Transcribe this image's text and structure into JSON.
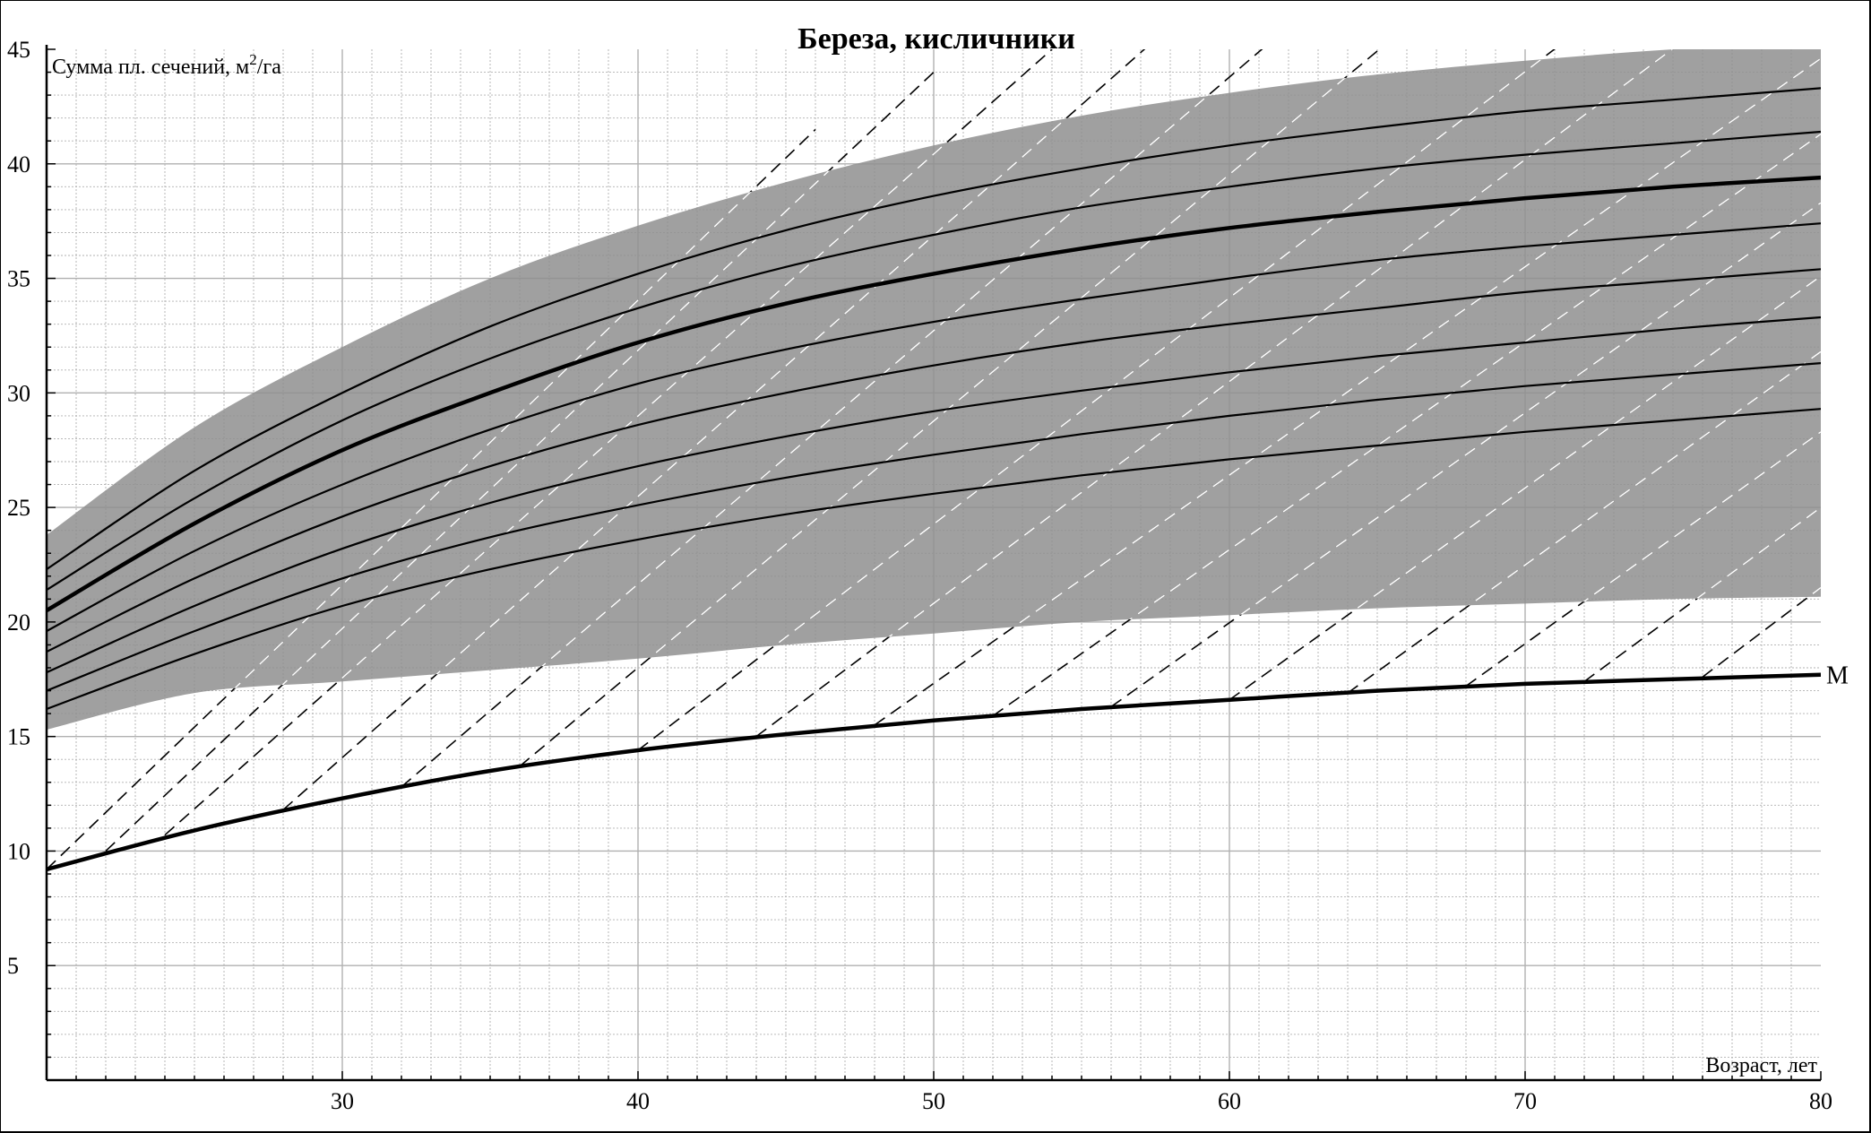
{
  "chart_data": {
    "type": "line",
    "title": "Береза, кисличники",
    "ylabel_prefix": "Сумма пл. сечений, м",
    "ylabel_sup": "2",
    "ylabel_suffix": "/га",
    "xlabel": "Возраст, лет",
    "xlim": [
      20,
      80
    ],
    "ylim": [
      0,
      45
    ],
    "x_ticks": [
      30,
      40,
      50,
      60,
      70,
      80
    ],
    "y_ticks": [
      5,
      10,
      15,
      20,
      25,
      30,
      35,
      40,
      45
    ],
    "grid": true,
    "colors": {
      "band": "#8f8f8f",
      "line": "#000000",
      "grid": "#b0b0b0",
      "dashed": "#000000",
      "dashed_on_band": "#ffffff"
    },
    "band": {
      "x": [
        20,
        25,
        30,
        35,
        40,
        45,
        50,
        55,
        60,
        65,
        70,
        75,
        80
      ],
      "upper": [
        23.8,
        28.5,
        32.0,
        35.0,
        37.3,
        39.2,
        40.8,
        42.1,
        43.1,
        43.9,
        44.5,
        45.0,
        45.3
      ],
      "lower": [
        15.3,
        16.9,
        17.4,
        17.9,
        18.4,
        19.0,
        19.5,
        20.0,
        20.3,
        20.6,
        20.8,
        21.0,
        21.1
      ]
    },
    "series": [
      {
        "x": [
          20,
          25,
          30,
          35,
          40,
          45,
          50,
          55,
          60,
          65,
          70,
          75,
          80
        ],
        "values": [
          20.5,
          24.3,
          27.5,
          30.0,
          32.2,
          33.9,
          35.2,
          36.3,
          37.2,
          37.9,
          38.5,
          39.0,
          39.4
        ],
        "thick": true
      },
      {
        "x": [
          20,
          25,
          30,
          35,
          40,
          45,
          50,
          55,
          60,
          65,
          70,
          75,
          80
        ],
        "values": [
          22.3,
          26.6,
          30.0,
          32.9,
          35.2,
          37.1,
          38.6,
          39.8,
          40.8,
          41.6,
          42.3,
          42.8,
          43.3
        ],
        "thick": false
      },
      {
        "x": [
          20,
          25,
          30,
          35,
          40,
          45,
          50,
          55,
          60,
          65,
          70,
          75,
          80
        ],
        "values": [
          21.4,
          25.4,
          28.8,
          31.5,
          33.7,
          35.5,
          36.9,
          38.1,
          39.0,
          39.8,
          40.4,
          40.9,
          41.4
        ],
        "thick": false
      },
      {
        "x": [
          20,
          25,
          30,
          35,
          40,
          45,
          50,
          55,
          60,
          65,
          70,
          75,
          80
        ],
        "values": [
          19.6,
          23.1,
          26.0,
          28.4,
          30.4,
          31.9,
          33.1,
          34.1,
          35.0,
          35.8,
          36.4,
          36.9,
          37.4
        ],
        "thick": false
      },
      {
        "x": [
          20,
          25,
          30,
          35,
          40,
          45,
          50,
          55,
          60,
          65,
          70,
          75,
          80
        ],
        "values": [
          18.7,
          21.9,
          24.6,
          26.8,
          28.6,
          30.0,
          31.2,
          32.2,
          33.0,
          33.7,
          34.4,
          34.9,
          35.4
        ],
        "thick": false
      },
      {
        "x": [
          20,
          25,
          30,
          35,
          40,
          45,
          50,
          55,
          60,
          65,
          70,
          75,
          80
        ],
        "values": [
          17.8,
          20.7,
          23.2,
          25.2,
          26.8,
          28.1,
          29.2,
          30.1,
          30.9,
          31.6,
          32.2,
          32.8,
          33.3
        ],
        "thick": false
      },
      {
        "x": [
          20,
          25,
          30,
          35,
          40,
          45,
          50,
          55,
          60,
          65,
          70,
          75,
          80
        ],
        "values": [
          17.0,
          19.6,
          21.9,
          23.7,
          25.1,
          26.3,
          27.3,
          28.2,
          29.0,
          29.7,
          30.3,
          30.8,
          31.3
        ],
        "thick": false
      },
      {
        "x": [
          20,
          25,
          30,
          35,
          40,
          45,
          50,
          55,
          60,
          65,
          70,
          75,
          80
        ],
        "values": [
          16.2,
          18.6,
          20.7,
          22.3,
          23.6,
          24.7,
          25.6,
          26.4,
          27.1,
          27.7,
          28.3,
          28.8,
          29.3
        ],
        "thick": false
      },
      {
        "name": "М",
        "x": [
          20,
          25,
          30,
          35,
          40,
          45,
          50,
          55,
          60,
          65,
          70,
          75,
          80
        ],
        "values": [
          9.2,
          10.9,
          12.3,
          13.5,
          14.4,
          15.1,
          15.7,
          16.2,
          16.6,
          17.0,
          17.3,
          17.5,
          17.7
        ],
        "thick": true
      }
    ],
    "dashed_lines": [
      {
        "x": [
          20,
          46
        ],
        "values": [
          9.2,
          41.5
        ]
      },
      {
        "x": [
          22,
          50
        ],
        "values": [
          10.0,
          44.0
        ]
      },
      {
        "x": [
          24,
          54
        ],
        "values": [
          10.7,
          45.0
        ]
      },
      {
        "x": [
          28,
          58
        ],
        "values": [
          11.8,
          46.0
        ]
      },
      {
        "x": [
          32,
          62
        ],
        "values": [
          12.8,
          46.0
        ]
      },
      {
        "x": [
          36,
          66
        ],
        "values": [
          13.7,
          46.0
        ]
      },
      {
        "x": [
          40,
          72
        ],
        "values": [
          14.4,
          46.0
        ]
      },
      {
        "x": [
          44,
          76
        ],
        "values": [
          15.0,
          46.0
        ]
      },
      {
        "x": [
          48,
          80
        ],
        "values": [
          15.5,
          44.6
        ]
      },
      {
        "x": [
          52,
          80
        ],
        "values": [
          15.9,
          41.3
        ]
      },
      {
        "x": [
          56,
          80
        ],
        "values": [
          16.3,
          38.3
        ]
      },
      {
        "x": [
          60,
          80
        ],
        "values": [
          16.6,
          35.1
        ]
      },
      {
        "x": [
          64,
          80
        ],
        "values": [
          16.9,
          31.8
        ]
      },
      {
        "x": [
          68,
          80
        ],
        "values": [
          17.2,
          28.3
        ]
      },
      {
        "x": [
          72,
          80
        ],
        "values": [
          17.4,
          25.0
        ]
      },
      {
        "x": [
          76,
          80
        ],
        "values": [
          17.6,
          21.5
        ]
      }
    ],
    "annotations": [
      {
        "text": "М",
        "x": 80,
        "y": 17.7
      }
    ]
  }
}
